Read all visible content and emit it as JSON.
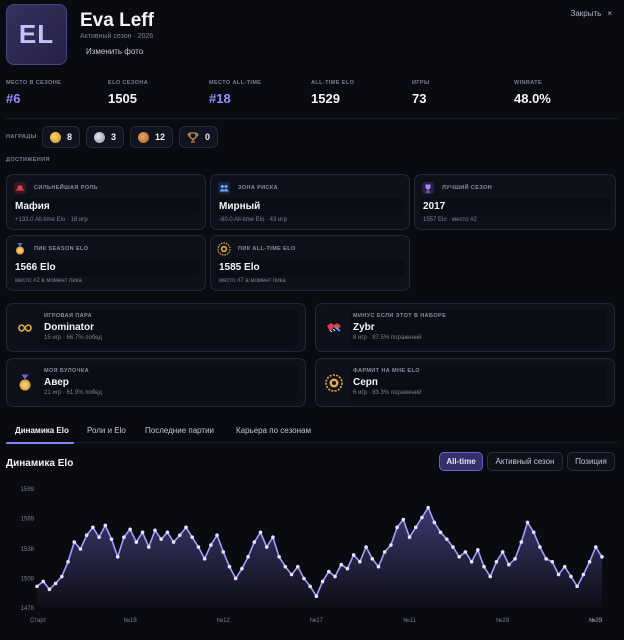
{
  "profile": {
    "initials": "EL",
    "name": "Eva Leff",
    "season_line": "Активный сезон · 2026",
    "change_photo_label": "Изменить фото",
    "close_label": "Закрыть",
    "close_icon": "×"
  },
  "stats": [
    {
      "label": "МЕСТО В СЕЗОНЕ",
      "value": "#6",
      "accent": true
    },
    {
      "label": "ELO СЕЗОНА",
      "value": "1505",
      "accent": false
    },
    {
      "label": "МЕСТО ALL-TIME",
      "value": "#18",
      "accent": true
    },
    {
      "label": "ALL-TIME ELO",
      "value": "1529",
      "accent": false
    },
    {
      "label": "ИГРЫ",
      "value": "73",
      "accent": false
    },
    {
      "label": "WINRATE",
      "value": "48.0%",
      "accent": false
    }
  ],
  "awards": {
    "label": "НАГРАДЫ",
    "items": [
      {
        "icon": "gold-medal-icon",
        "count": "8"
      },
      {
        "icon": "silver-medal-icon",
        "count": "3"
      },
      {
        "icon": "bronze-medal-icon",
        "count": "12"
      },
      {
        "icon": "trophy-icon",
        "count": "0"
      }
    ]
  },
  "achievements": {
    "label": "ДОСТИЖЕНИЯ",
    "cards": [
      {
        "icon": "hat-icon",
        "label": "СИЛЬНЕЙШАЯ РОЛЬ",
        "value": "Мафия",
        "sub": "+133.0 All-time Elo · 18 игр"
      },
      {
        "icon": "people-icon",
        "label": "ЗОНА РИСКА",
        "value": "Мирный",
        "sub": "-80.0 All-time Elo · 43 игр"
      },
      {
        "icon": "cup-icon",
        "label": "ЛУЧШИЙ СЕЗОН",
        "value": "2017",
        "sub": "1557 Elo · место #2"
      },
      {
        "icon": "medal-icon",
        "label": "ПИК SEASON ELO",
        "value": "1566 Elo",
        "sub": "место #2 в момент пика"
      },
      {
        "icon": "laurel-icon",
        "label": "ПИК ALL-TIME ELO",
        "value": "1585 Elo",
        "sub": "место #7 в момент пика"
      }
    ]
  },
  "partners": [
    {
      "icon": "infinity-icon",
      "label": "ИГРОВАЯ ПАРА",
      "value": "Dominator",
      "sub": "15 игр · 66.7% побед"
    },
    {
      "icon": "handshake-icon",
      "label": "МИНУС ЕСЛИ ЭТОТ В НАБОРЕ",
      "value": "Zybr",
      "sub": "8 игр · 87.5% поражений"
    },
    {
      "icon": "medal-icon",
      "label": "МОЯ БУЛОЧКА",
      "value": "Авер",
      "sub": "21 игр · 61.9% побед"
    },
    {
      "icon": "laurel-icon",
      "label": "ФАРМИТ НА МНЕ ELO",
      "value": "Серп",
      "sub": "6 игр · 83.3% поражений"
    }
  ],
  "tabs": [
    {
      "label": "Динамика Elo",
      "active": true
    },
    {
      "label": "Роли и Elo",
      "active": false
    },
    {
      "label": "Последние партии",
      "active": false
    },
    {
      "label": "Карьера по сезонам",
      "active": false
    }
  ],
  "chart_section": {
    "title": "Динамика Elo",
    "toggles": [
      {
        "label": "All-time",
        "active": true
      },
      {
        "label": "Активный сезон",
        "active": false
      },
      {
        "label": "Позиция",
        "active": false
      }
    ]
  },
  "chart_data": {
    "type": "area",
    "title": "Динамика Elo",
    "xlabel": "",
    "ylabel": "",
    "ylim": [
      1478,
      1599
    ],
    "yticks": [
      1478,
      1508,
      1538,
      1569,
      1599
    ],
    "xticks": [
      {
        "index": 0,
        "label": "Старт"
      },
      {
        "index": 15,
        "label": "№19"
      },
      {
        "index": 30,
        "label": "№12"
      },
      {
        "index": 45,
        "label": "№17"
      },
      {
        "index": 60,
        "label": "№11"
      },
      {
        "index": 75,
        "label": "№29"
      },
      {
        "index": 90,
        "label": "№29"
      },
      {
        "index": 91,
        "label": "№22"
      }
    ],
    "grid": false,
    "series": [
      {
        "color": "#a79cff",
        "values": [
          1500,
          1505,
          1497,
          1503,
          1510,
          1525,
          1545,
          1538,
          1552,
          1560,
          1550,
          1562,
          1548,
          1530,
          1550,
          1558,
          1545,
          1555,
          1540,
          1557,
          1548,
          1555,
          1545,
          1552,
          1560,
          1550,
          1540,
          1528,
          1542,
          1552,
          1535,
          1520,
          1508,
          1518,
          1530,
          1545,
          1555,
          1540,
          1550,
          1530,
          1520,
          1512,
          1520,
          1508,
          1500,
          1490,
          1505,
          1515,
          1510,
          1522,
          1518,
          1532,
          1525,
          1540,
          1528,
          1520,
          1535,
          1542,
          1560,
          1568,
          1550,
          1560,
          1570,
          1580,
          1565,
          1555,
          1548,
          1540,
          1530,
          1535,
          1525,
          1537,
          1520,
          1510,
          1525,
          1535,
          1522,
          1528,
          1545,
          1565,
          1555,
          1540,
          1528,
          1525,
          1512,
          1520,
          1510,
          1500,
          1512,
          1525,
          1540,
          1530
        ]
      }
    ]
  }
}
